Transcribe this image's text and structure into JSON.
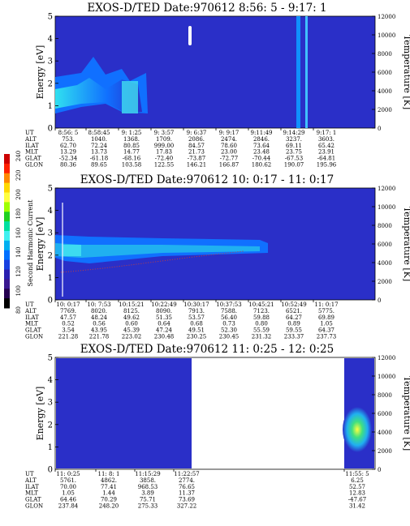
{
  "colorbar": {
    "label": "Second Harmonic Current",
    "ticks": [
      "240",
      "220",
      "200",
      "180",
      "160",
      "140",
      "120",
      "100",
      "80"
    ],
    "colors": [
      "#cc0000",
      "#ff2000",
      "#ff8800",
      "#ffd800",
      "#ffff40",
      "#a0ff00",
      "#20d020",
      "#00e0a0",
      "#40f0f0",
      "#00b0f0",
      "#0070ff",
      "#1840e0",
      "#2a1fb0",
      "#3a1890",
      "#250050",
      "#000000"
    ]
  },
  "chart_data": [
    {
      "type": "heatmap",
      "title": "EXOS-D/TED   Date:970612  8:56: 5 - 9:17: 1",
      "ylabel": "Energy [eV]",
      "y2label": "Temperature [K]",
      "ylim": [
        0,
        5
      ],
      "y2lim": [
        0,
        12000
      ],
      "yticks": [
        "0",
        "1",
        "2",
        "3",
        "4",
        "5"
      ],
      "y2ticks": [
        "0",
        "2000",
        "4000",
        "6000",
        "8000",
        "10000",
        "12000"
      ],
      "orbit_table": {
        "row_labels": [
          "UT",
          "ALT",
          "ILAT",
          "MLT",
          "GLAT",
          "GLON"
        ],
        "columns": [
          [
            "8:56: 5",
            "753.",
            "62.70",
            "13.29",
            "-52.34",
            "80.36"
          ],
          [
            "8:58:45",
            "1040.",
            "72.24",
            "13.73",
            "-61.18",
            "89.65"
          ],
          [
            "9: 1:25",
            "1368.",
            "80.85",
            "14.77",
            "-68.16",
            "103.58"
          ],
          [
            "9: 3:57",
            "1709.",
            "999.00",
            "17.83",
            "-72.40",
            "122.55"
          ],
          [
            "9: 6:37",
            "2086.",
            "84.57",
            "21.73",
            "-73.87",
            "146.21"
          ],
          [
            "9: 9:17",
            "2474.",
            "78.60",
            "23.00",
            "-72.77",
            "166.87"
          ],
          [
            "9:11:49",
            "2846.",
            "73.64",
            "23.48",
            "-70.44",
            "180.62"
          ],
          [
            "9:14:29",
            "3237.",
            "69.11",
            "23.75",
            "-67.53",
            "190.07"
          ],
          [
            "9:17: 1",
            "3603.",
            "65.42",
            "23.91",
            "-64.81",
            "195.96"
          ]
        ]
      }
    },
    {
      "type": "heatmap",
      "title": "EXOS-D/TED   Date:970612  10: 0:17 - 11: 0:17",
      "ylabel": "Energy [eV]",
      "y2label": "Temperature [K]",
      "ylim": [
        0,
        5
      ],
      "y2lim": [
        0,
        12000
      ],
      "yticks": [
        "0",
        "1",
        "2",
        "3",
        "4",
        "5"
      ],
      "y2ticks": [
        "0",
        "2000",
        "4000",
        "6000",
        "8000",
        "10000",
        "12000"
      ],
      "orbit_table": {
        "row_labels": [
          "UT",
          "ALT",
          "ILAT",
          "MLT",
          "GLAT",
          "GLON"
        ],
        "columns": [
          [
            "10: 0:17",
            "7769.",
            "47.57",
            "0.52",
            "3.54",
            "221.28"
          ],
          [
            "10: 7:53",
            "8020.",
            "48.24",
            "0.56",
            "43.95",
            "221.78"
          ],
          [
            "10:15:21",
            "8125.",
            "49.62",
            "0.60",
            "45.39",
            "223.02"
          ],
          [
            "10:22:49",
            "8090.",
            "51.35",
            "0.64",
            "47.24",
            "230.48"
          ],
          [
            "10:30:17",
            "7913.",
            "53.57",
            "0.68",
            "49.51",
            "230.25"
          ],
          [
            "10:37:53",
            "7588.",
            "56.40",
            "0.73",
            "52.30",
            "230.45"
          ],
          [
            "10:45:21",
            "7123.",
            "59.88",
            "0.80",
            "55.59",
            "231.32"
          ],
          [
            "10:52:49",
            "6521.",
            "64.27",
            "0.89",
            "59.55",
            "233.37"
          ],
          [
            "11: 0:17",
            "5775.",
            "69.89",
            "1.05",
            "64.37",
            "237.73"
          ]
        ]
      }
    },
    {
      "type": "heatmap",
      "title": "EXOS-D/TED   Date:970612  11: 0:25 - 12: 0:25",
      "ylabel": "Energy [eV]",
      "y2label": "Temperature [K]",
      "ylim": [
        0,
        5
      ],
      "y2lim": [
        0,
        12000
      ],
      "yticks": [
        "0",
        "1",
        "2",
        "3",
        "4",
        "5"
      ],
      "y2ticks": [
        "0",
        "2000",
        "4000",
        "6000",
        "8000",
        "10000",
        "12000"
      ],
      "orbit_table": {
        "row_labels": [
          "UT",
          "ALT",
          "ILAT",
          "MLT",
          "GLAT",
          "GLON"
        ],
        "columns": [
          [
            "11: 0:25",
            "5761.",
            "70.00",
            "1.05",
            "64.46",
            "237.84"
          ],
          [
            "11: 8: 1",
            "4862.",
            "77.41",
            "1.44",
            "70.29",
            "248.20"
          ],
          [
            "11:15:29",
            "3858.",
            "968.53",
            "3.89",
            "75.71",
            "275.33"
          ],
          [
            "11:22:57",
            "2774.",
            "76.65",
            "11.37",
            "73.69",
            "327.22"
          ],
          [
            "11:55: 5",
            "6.25",
            "52.57",
            "12.83",
            "-47.67",
            "31.42"
          ]
        ]
      }
    }
  ]
}
